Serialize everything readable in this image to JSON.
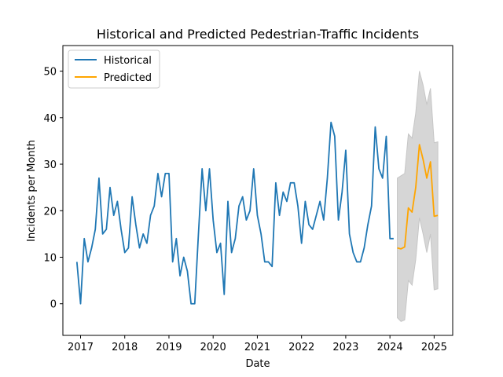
{
  "chart_data": {
    "type": "line",
    "title": "Historical and Predicted Pedestrian-Traffic Incidents",
    "xlabel": "Date",
    "ylabel": "Incidents per Month",
    "xlim": [
      2016.6,
      2025.42
    ],
    "ylim": [
      -6.8,
      55.5
    ],
    "x_ticks": [
      2017,
      2018,
      2019,
      2020,
      2021,
      2022,
      2023,
      2024,
      2025
    ],
    "x_tick_labels": [
      "2017",
      "2018",
      "2019",
      "2020",
      "2021",
      "2022",
      "2023",
      "2024",
      "2025"
    ],
    "y_ticks": [
      0,
      10,
      20,
      30,
      40,
      50
    ],
    "y_tick_labels": [
      "0",
      "10",
      "20",
      "30",
      "40",
      "50"
    ],
    "legend": {
      "position": "top-left",
      "entries": [
        "Historical",
        "Predicted"
      ]
    },
    "series": [
      {
        "name": "Historical",
        "color": "#1f77b4",
        "start_year": 2016.917,
        "step_months": 1,
        "values": [
          9,
          0,
          14,
          9,
          12,
          16,
          27,
          15,
          16,
          25,
          19,
          22,
          16,
          11,
          12,
          23,
          17,
          12,
          15,
          13,
          19,
          21,
          28,
          23,
          28,
          28,
          9,
          14,
          6,
          10,
          7,
          0,
          0,
          15,
          29,
          20,
          29,
          18,
          11,
          13,
          2,
          22,
          11,
          14,
          21,
          23,
          18,
          20,
          29,
          19,
          15,
          9,
          9,
          8,
          26,
          19,
          24,
          22,
          26,
          26,
          21,
          13,
          22,
          17,
          16,
          19,
          22,
          18,
          27,
          39,
          36,
          18,
          24,
          33,
          15,
          11,
          9,
          9,
          12,
          17,
          21,
          38,
          29,
          27,
          36,
          14,
          14
        ]
      },
      {
        "name": "Predicted",
        "color": "#ffa500",
        "start_year": 2024.167,
        "step_months": 1,
        "values": [
          12,
          11.8,
          12.2,
          20.6,
          19.7,
          25,
          34.2,
          31,
          27,
          30.5,
          18.8,
          19
        ],
        "lower": [
          -3,
          -3.8,
          -3.5,
          5,
          4,
          9.5,
          18.5,
          15,
          11,
          15,
          3,
          3.2
        ],
        "upper": [
          27,
          27.5,
          28,
          36.5,
          35.6,
          41,
          50,
          47,
          42.8,
          46.3,
          34.6,
          34.8
        ]
      }
    ]
  }
}
